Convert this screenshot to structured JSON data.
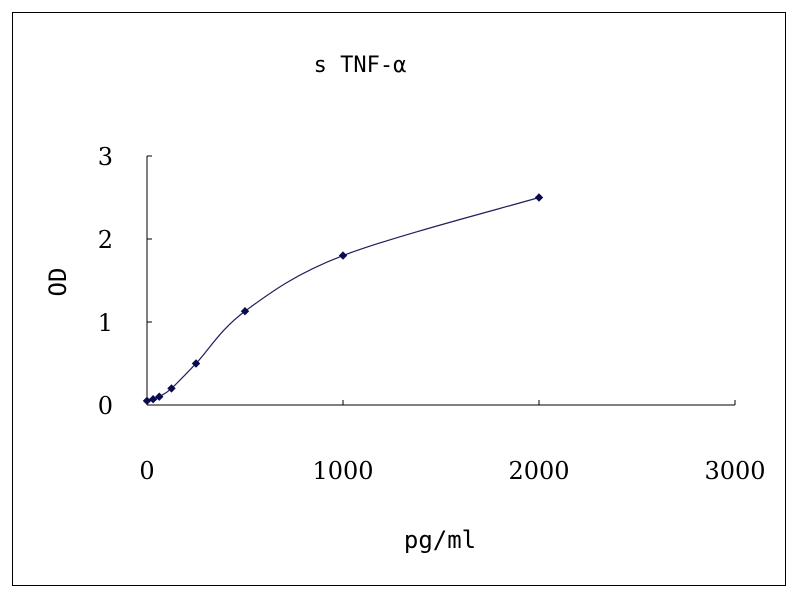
{
  "chart_data": {
    "type": "line",
    "title": "s TNF-α",
    "xlabel": "pg/ml",
    "ylabel": "OD",
    "xlim": [
      0,
      3000
    ],
    "ylim": [
      0,
      3
    ],
    "x_ticks": [
      "0",
      "1000",
      "2000",
      "3000"
    ],
    "y_ticks": [
      "0",
      "1",
      "2",
      "3"
    ],
    "grid": false,
    "legend": "none",
    "series": [
      {
        "x": [
          0,
          31.25,
          62.5,
          125,
          250,
          500,
          1000,
          2000
        ],
        "y": [
          0.05,
          0.07,
          0.1,
          0.2,
          0.5,
          1.13,
          1.8,
          2.5
        ]
      }
    ],
    "colors": {
      "line": "#1f1f5e",
      "marker": "#0a0a50",
      "axis": "#000000"
    }
  }
}
